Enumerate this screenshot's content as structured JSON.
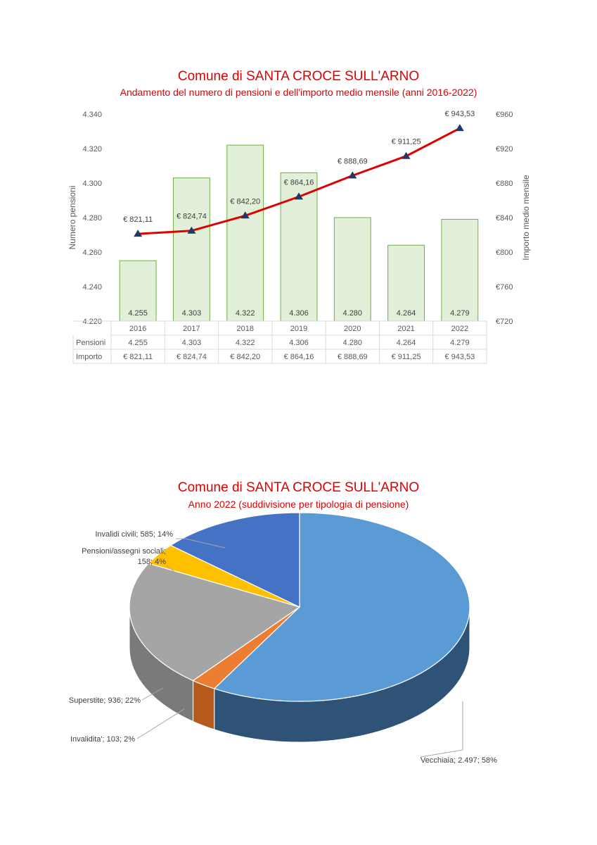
{
  "chart_data": [
    {
      "type": "bar",
      "title": "Comune di SANTA CROCE SULL'ARNO",
      "subtitle": "Andamento del numero di pensioni e dell'importo medio mensile (anni 2016-2022)",
      "categories": [
        "2016",
        "2017",
        "2018",
        "2019",
        "2020",
        "2021",
        "2022"
      ],
      "ylabel": "Numero pensioni",
      "ylabel_right": "Importo medio mensile",
      "ylim": [
        4220,
        4340
      ],
      "y_ticks": [
        "4.220",
        "4.240",
        "4.260",
        "4.280",
        "4.300",
        "4.320",
        "4.340"
      ],
      "ylim_right": [
        720,
        960
      ],
      "y_ticks_right": [
        "€720",
        "€760",
        "€800",
        "€840",
        "€880",
        "€920",
        "€960"
      ],
      "grid": false,
      "legend": "none",
      "series": [
        {
          "name": "Pensioni",
          "type": "bar",
          "values": [
            4255,
            4303,
            4322,
            4306,
            4280,
            4264,
            4279
          ],
          "labels": [
            "4.255",
            "4.303",
            "4.322",
            "4.306",
            "4.280",
            "4.264",
            "4.279"
          ],
          "color": "#e2efd9",
          "border": "#70ad47"
        },
        {
          "name": "Importo",
          "type": "line",
          "axis": "right",
          "values": [
            821.11,
            824.74,
            842.2,
            864.16,
            888.69,
            911.25,
            943.53
          ],
          "labels": [
            "€ 821,11",
            "€ 824,74",
            "€ 842,20",
            "€ 864,16",
            "€ 888,69",
            "€ 911,25",
            "€ 943,53"
          ],
          "color": "#e00000",
          "marker_color": "#1f3864"
        }
      ],
      "data_table": {
        "rows": [
          {
            "label": "Pensioni",
            "cells": [
              "4.255",
              "4.303",
              "4.322",
              "4.306",
              "4.280",
              "4.264",
              "4.279"
            ]
          },
          {
            "label": "Importo",
            "cells": [
              "€ 821,11",
              "€ 824,74",
              "€ 842,20",
              "€ 864,16",
              "€ 888,69",
              "€ 911,25",
              "€ 943,53"
            ]
          }
        ]
      }
    },
    {
      "type": "pie",
      "title": "Comune di SANTA CROCE SULL'ARNO",
      "subtitle": "Anno 2022 (suddivisione per tipologia di pensione)",
      "legend": "none",
      "slices": [
        {
          "name": "Vecchiaia",
          "value": 2497,
          "percent": 58,
          "label": "Vecchiaia; 2.497; 58%",
          "color": "#5b9bd5",
          "side_color": "#2e5377"
        },
        {
          "name": "Invalidita'",
          "value": 103,
          "percent": 2,
          "label": "Invalidita'; 103; 2%",
          "color": "#ed7d31",
          "side_color": "#b65a1c"
        },
        {
          "name": "Superstite",
          "value": 936,
          "percent": 22,
          "label": "Superstite; 936; 22%",
          "color": "#a5a5a5",
          "side_color": "#7a7a7a"
        },
        {
          "name": "Pensioni/assegni sociali",
          "value": 158,
          "percent": 4,
          "label": "Pensioni/assegni sociali; 158; 4%",
          "label_lines": [
            "Pensioni/assegni sociali;",
            "158; 4%"
          ],
          "color": "#ffc000",
          "side_color": "#c69500"
        },
        {
          "name": "Invalidi civili",
          "value": 585,
          "percent": 14,
          "label": "Invalidi civili; 585; 14%",
          "color": "#4472c4",
          "side_color": "#2c4f8a"
        }
      ]
    }
  ]
}
